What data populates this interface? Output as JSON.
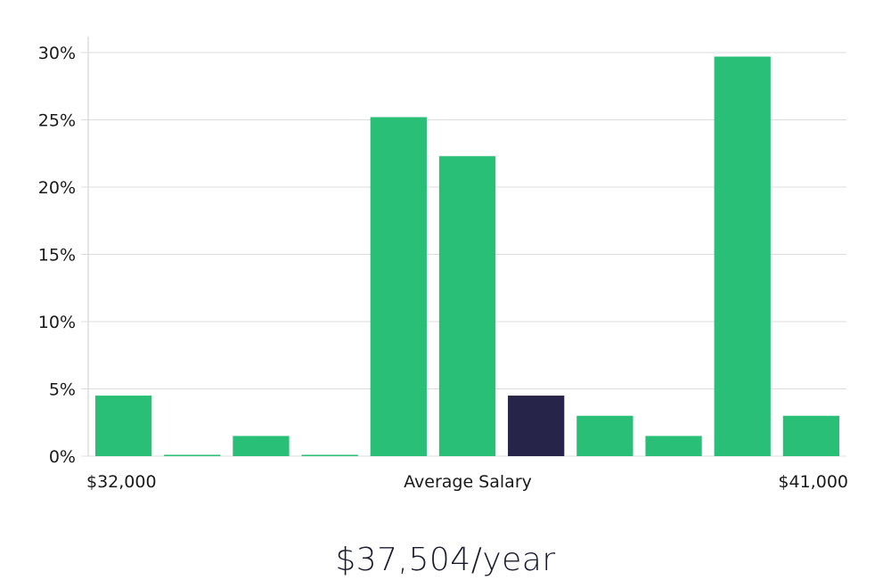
{
  "chart_data": {
    "type": "bar",
    "categories": [
      "b1",
      "b2",
      "b3",
      "b4",
      "b5",
      "b6",
      "b7",
      "b8",
      "b9",
      "b10",
      "b11"
    ],
    "values": [
      4.5,
      0.1,
      1.5,
      0.1,
      25.2,
      22.3,
      4.5,
      3.0,
      1.5,
      29.7,
      3.0
    ],
    "highlight_index": 6,
    "ylim": [
      0,
      30
    ],
    "yticks": [
      0,
      5,
      10,
      15,
      20,
      25,
      30
    ],
    "ytick_labels": [
      "0%",
      "5%",
      "10%",
      "15%",
      "20%",
      "25%",
      "30%"
    ],
    "x_left_label": "$32,000",
    "x_center_label": "Average Salary",
    "x_right_label": "$41,000",
    "grid": true,
    "colors": {
      "bar": "#2abf77",
      "highlight": "#27244a",
      "grid": "#dcdcdc",
      "axis": "#cccccc"
    }
  },
  "salary_text": "$37,504/year"
}
